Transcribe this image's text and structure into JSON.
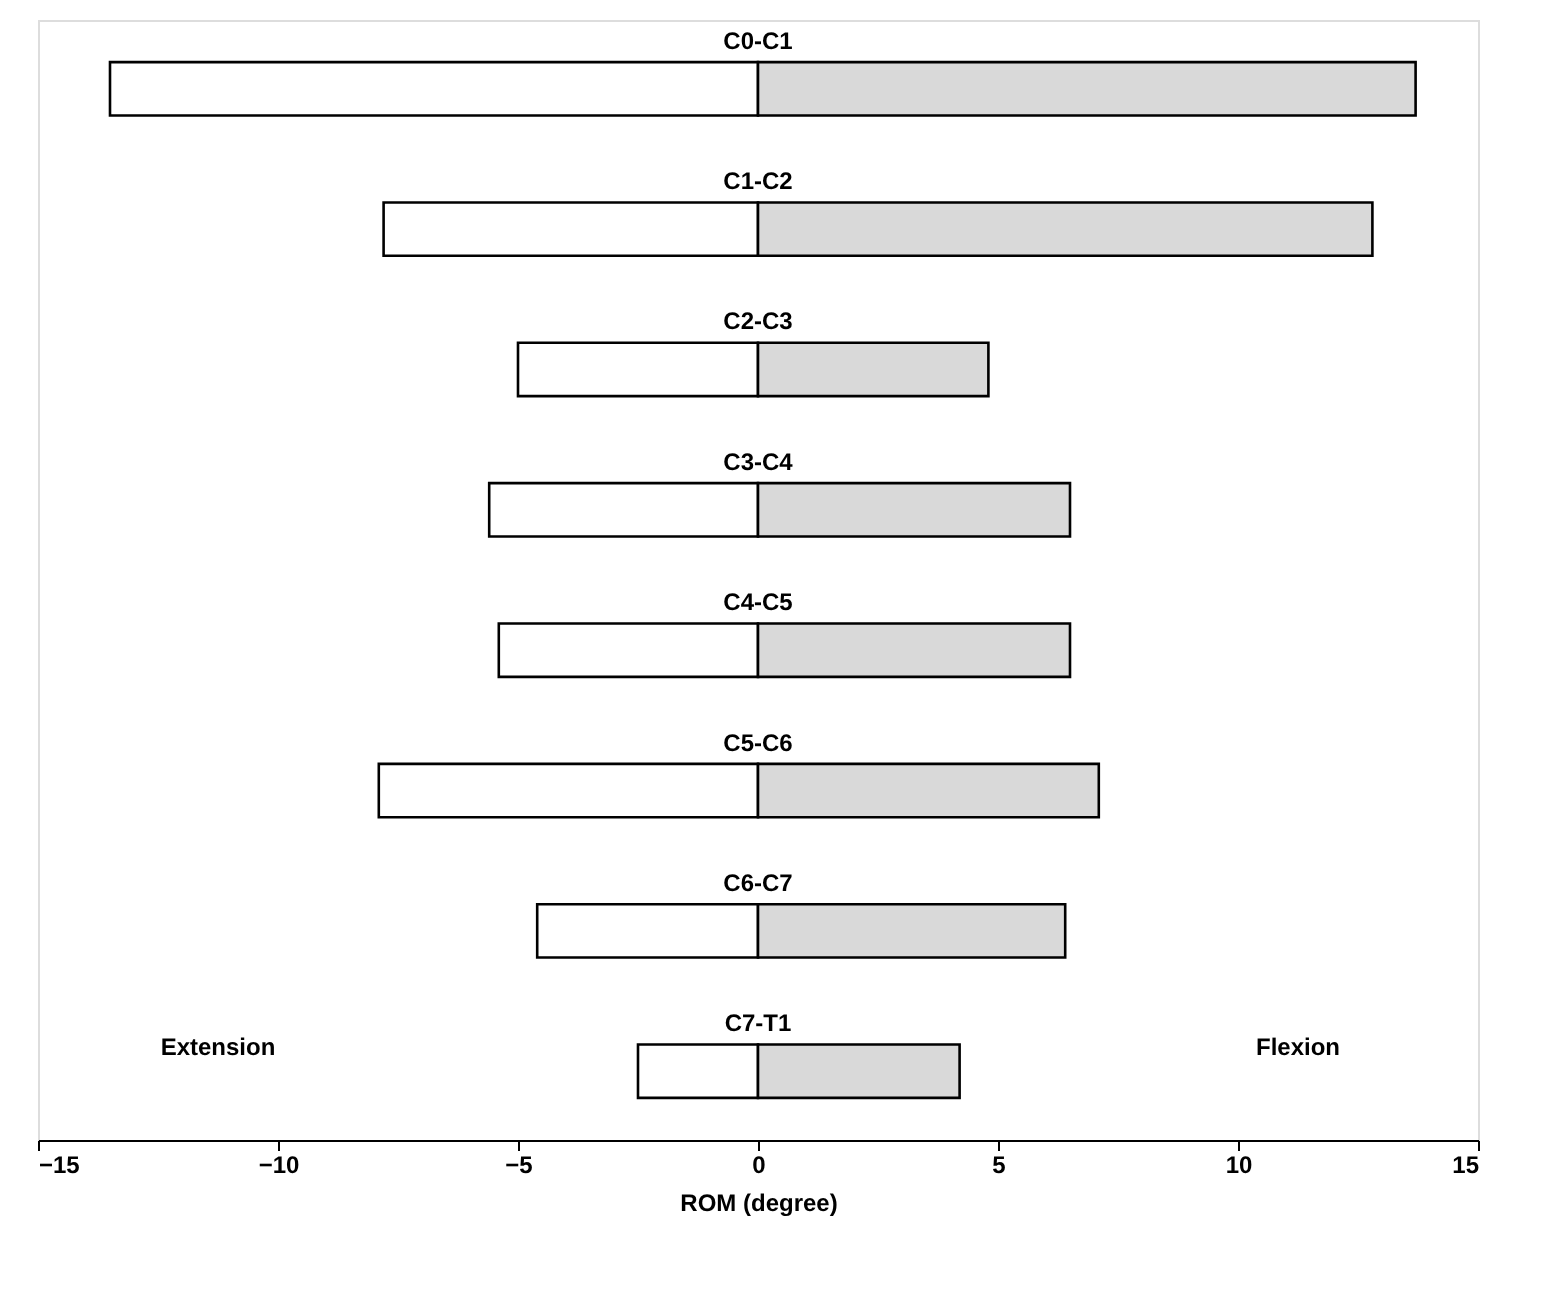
{
  "chart_data": {
    "type": "bar",
    "orientation": "horizontal",
    "stacked": true,
    "xlabel": "ROM (degree)",
    "categories": [
      "C0-C1",
      "C1-C2",
      "C2-C3",
      "C3-C4",
      "C4-C5",
      "C5-C6",
      "C6-C7",
      "C7-T1"
    ],
    "series": [
      {
        "color": "#ffffff",
        "values": [
          -13.5,
          -7.8,
          -5.0,
          -5.6,
          -5.4,
          -7.9,
          -4.6,
          -2.5
        ]
      },
      {
        "color": "#d9d9d9",
        "values": [
          13.7,
          12.8,
          4.8,
          6.5,
          6.5,
          7.1,
          6.4,
          4.2
        ]
      }
    ],
    "xlim": [
      -15,
      15
    ],
    "xticks": [
      -15,
      -10,
      -5,
      0,
      5,
      10,
      15
    ],
    "annotations": [
      "Extension",
      "Flexion"
    ]
  }
}
